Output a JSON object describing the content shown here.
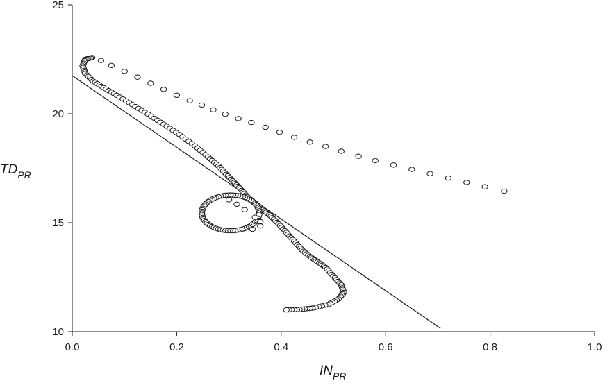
{
  "chart_data": {
    "type": "scatter",
    "xlabel": {
      "main": "IN",
      "sub": "PR"
    },
    "ylabel": {
      "main": "TD",
      "sub": "PR"
    },
    "xlim": [
      0.0,
      1.0
    ],
    "ylim": [
      10,
      25
    ],
    "x_ticks": [
      "0.0",
      "0.2",
      "0.4",
      "0.6",
      "0.8",
      "1.0"
    ],
    "y_ticks": [
      "10",
      "15",
      "20",
      "25"
    ],
    "x_tick_values": [
      0.0,
      0.2,
      0.4,
      0.6,
      0.8,
      1.0
    ],
    "y_tick_values": [
      10,
      15,
      20,
      25
    ],
    "grid": false,
    "line": {
      "x": [
        0.0,
        0.705
      ],
      "y": [
        21.75,
        10.15
      ]
    },
    "trajectory_anchors": [
      [
        0.827,
        16.45
      ],
      [
        0.79,
        16.65
      ],
      [
        0.755,
        16.85
      ],
      [
        0.72,
        17.05
      ],
      [
        0.685,
        17.25
      ],
      [
        0.65,
        17.45
      ],
      [
        0.615,
        17.65
      ],
      [
        0.58,
        17.85
      ],
      [
        0.548,
        18.05
      ],
      [
        0.515,
        18.28
      ],
      [
        0.485,
        18.5
      ],
      [
        0.455,
        18.7
      ],
      [
        0.425,
        18.92
      ],
      [
        0.397,
        19.15
      ],
      [
        0.37,
        19.38
      ],
      [
        0.343,
        19.6
      ],
      [
        0.318,
        19.78
      ],
      [
        0.293,
        19.98
      ],
      [
        0.27,
        20.18
      ],
      [
        0.248,
        20.4
      ],
      [
        0.225,
        20.6
      ],
      [
        0.2,
        20.85
      ],
      [
        0.175,
        21.12
      ],
      [
        0.15,
        21.4
      ],
      [
        0.125,
        21.68
      ],
      [
        0.1,
        21.95
      ],
      [
        0.075,
        22.22
      ],
      [
        0.055,
        22.45
      ],
      [
        0.038,
        22.58
      ],
      [
        0.025,
        22.5
      ],
      [
        0.02,
        22.2
      ],
      [
        0.025,
        21.85
      ],
      [
        0.04,
        21.5
      ],
      [
        0.06,
        21.2
      ],
      [
        0.085,
        20.85
      ],
      [
        0.115,
        20.42
      ],
      [
        0.145,
        19.98
      ],
      [
        0.175,
        19.52
      ],
      [
        0.205,
        19.05
      ],
      [
        0.235,
        18.52
      ],
      [
        0.26,
        18.02
      ],
      [
        0.28,
        17.6
      ],
      [
        0.295,
        17.22
      ],
      [
        0.31,
        16.85
      ],
      [
        0.322,
        16.55
      ],
      [
        0.335,
        16.2
      ],
      [
        0.35,
        15.9
      ],
      [
        0.365,
        15.6
      ],
      [
        0.38,
        15.3
      ],
      [
        0.395,
        14.95
      ],
      [
        0.41,
        14.55
      ],
      [
        0.425,
        14.15
      ],
      [
        0.44,
        13.75
      ],
      [
        0.455,
        13.45
      ],
      [
        0.47,
        13.2
      ],
      [
        0.485,
        12.95
      ],
      [
        0.5,
        12.55
      ],
      [
        0.515,
        12.15
      ],
      [
        0.52,
        11.8
      ],
      [
        0.51,
        11.5
      ],
      [
        0.49,
        11.25
      ],
      [
        0.46,
        11.08
      ],
      [
        0.435,
        11.02
      ],
      [
        0.41,
        11.0
      ]
    ],
    "loop": {
      "cx": 0.303,
      "cy": 15.45,
      "rx": 0.055,
      "ry": 0.82,
      "extra": [
        [
          0.345,
          14.7
        ],
        [
          0.36,
          14.85
        ],
        [
          0.36,
          15.05
        ],
        [
          0.35,
          15.25
        ],
        [
          0.33,
          15.6
        ],
        [
          0.315,
          15.85
        ],
        [
          0.3,
          16.05
        ]
      ]
    }
  }
}
